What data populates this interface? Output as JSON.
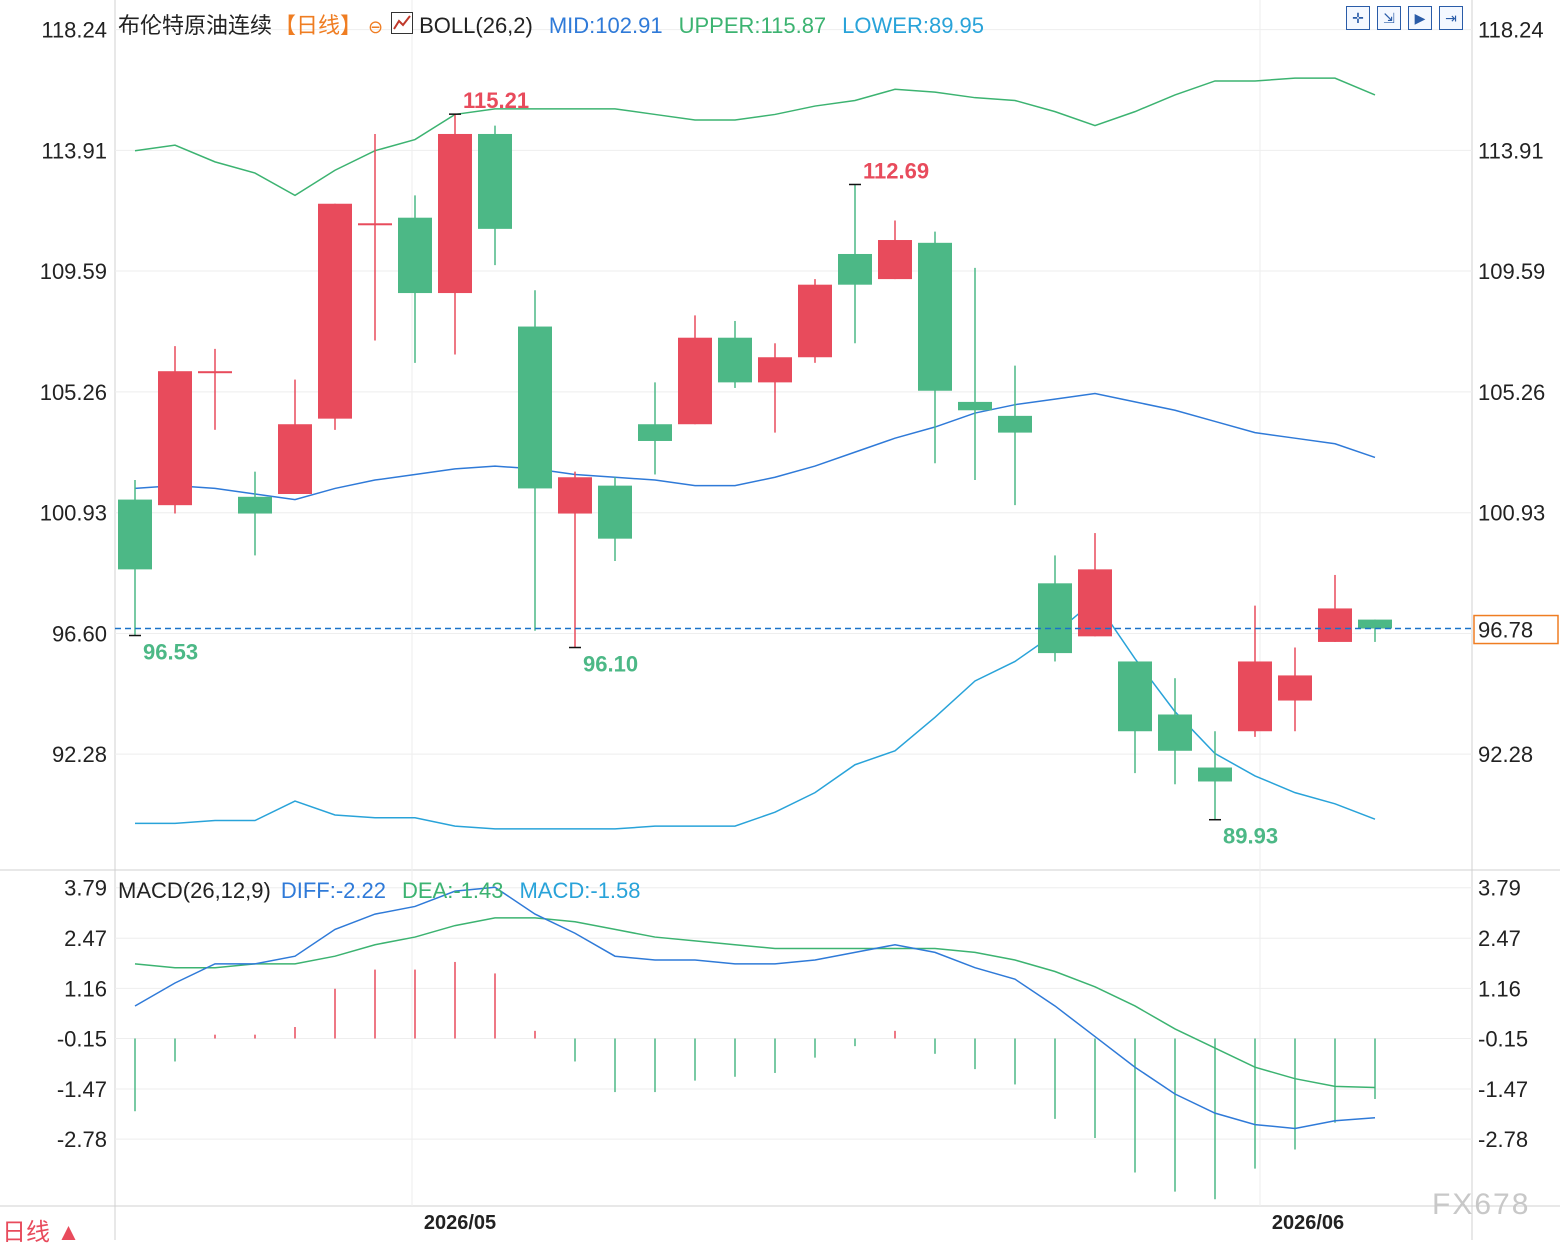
{
  "header": {
    "instrument": "布伦特原油连续",
    "period_tag": "【日线】",
    "period_icon": "⊖",
    "indicator_icon": "chart-icon",
    "boll_label": "BOLL(26,2)",
    "boll_mid": "MID:102.91",
    "boll_upper": "UPPER:115.87",
    "boll_lower": "LOWER:89.95"
  },
  "macd_header": {
    "label": "MACD(26,12,9)",
    "diff": "DIFF:-2.22",
    "dea": "DEA:-1.43",
    "macd": "MACD:-1.58"
  },
  "toolbar": {
    "icons": [
      "crosshair-icon",
      "zoom-in-icon",
      "scroll-right-icon",
      "scroll-end-icon"
    ]
  },
  "footer": {
    "period": "日线 ▲",
    "watermark": "FX678"
  },
  "colors": {
    "up": "#e84b5c",
    "down": "#4cb886",
    "mid": "#2f7ad8",
    "upper": "#3cb371",
    "lower": "#29a3d9",
    "current": "#1a73c9",
    "price_box": "#ef7d22"
  },
  "chart_data": [
    {
      "type": "candlestick",
      "title": "布伦特原油连续",
      "ylim": [
        88.2,
        119.3
      ],
      "y_ticks": [
        "118.24",
        "113.91",
        "109.59",
        "105.26",
        "100.93",
        "96.60",
        "92.28"
      ],
      "x_labels": [
        {
          "label": "2026/05",
          "index": 7
        },
        {
          "label": "2026/06",
          "index": 28
        }
      ],
      "current_price": 96.78,
      "current_price_label": "96.78",
      "candles": [
        {
          "o": 101.4,
          "h": 102.1,
          "l": 96.53,
          "c": 98.9
        },
        {
          "o": 101.2,
          "h": 106.9,
          "l": 100.9,
          "c": 106.0
        },
        {
          "o": 106.0,
          "h": 106.8,
          "l": 103.9,
          "c": 106.0
        },
        {
          "o": 101.5,
          "h": 102.4,
          "l": 99.4,
          "c": 100.9
        },
        {
          "o": 101.6,
          "h": 105.7,
          "l": 101.6,
          "c": 104.1
        },
        {
          "o": 104.3,
          "h": 112.0,
          "l": 103.9,
          "c": 112.0
        },
        {
          "o": 111.3,
          "h": 114.5,
          "l": 107.1,
          "c": 111.3
        },
        {
          "o": 111.5,
          "h": 112.3,
          "l": 106.3,
          "c": 108.8
        },
        {
          "o": 108.8,
          "h": 115.21,
          "l": 106.6,
          "c": 114.5
        },
        {
          "o": 114.5,
          "h": 114.8,
          "l": 109.8,
          "c": 111.1
        },
        {
          "o": 107.6,
          "h": 108.9,
          "l": 96.7,
          "c": 101.8
        },
        {
          "o": 100.9,
          "h": 102.4,
          "l": 96.1,
          "c": 102.2
        },
        {
          "o": 101.9,
          "h": 102.2,
          "l": 99.2,
          "c": 100.0
        },
        {
          "o": 104.1,
          "h": 105.6,
          "l": 102.3,
          "c": 103.5
        },
        {
          "o": 104.1,
          "h": 108.0,
          "l": 104.1,
          "c": 107.2
        },
        {
          "o": 107.2,
          "h": 107.8,
          "l": 105.4,
          "c": 105.6
        },
        {
          "o": 105.6,
          "h": 107.0,
          "l": 103.8,
          "c": 106.5
        },
        {
          "o": 106.5,
          "h": 109.3,
          "l": 106.3,
          "c": 109.1
        },
        {
          "o": 110.2,
          "h": 112.69,
          "l": 107.0,
          "c": 109.1
        },
        {
          "o": 109.3,
          "h": 111.4,
          "l": 109.3,
          "c": 110.7
        },
        {
          "o": 110.6,
          "h": 111.0,
          "l": 102.7,
          "c": 105.3
        },
        {
          "o": 104.9,
          "h": 109.7,
          "l": 102.1,
          "c": 104.6
        },
        {
          "o": 104.4,
          "h": 106.2,
          "l": 101.2,
          "c": 103.8
        },
        {
          "o": 98.4,
          "h": 99.4,
          "l": 95.6,
          "c": 95.9
        },
        {
          "o": 96.5,
          "h": 100.2,
          "l": 96.5,
          "c": 98.9
        },
        {
          "o": 95.6,
          "h": 95.6,
          "l": 91.6,
          "c": 93.1
        },
        {
          "o": 93.7,
          "h": 95.0,
          "l": 91.2,
          "c": 92.4
        },
        {
          "o": 91.8,
          "h": 93.1,
          "l": 89.93,
          "c": 91.3
        },
        {
          "o": 93.1,
          "h": 97.6,
          "l": 92.9,
          "c": 95.6
        },
        {
          "o": 94.2,
          "h": 96.1,
          "l": 93.1,
          "c": 95.1
        },
        {
          "o": 96.3,
          "h": 98.7,
          "l": 96.3,
          "c": 97.5
        },
        {
          "o": 97.1,
          "h": 97.1,
          "l": 96.3,
          "c": 96.78
        }
      ],
      "boll_upper": [
        113.9,
        114.1,
        113.5,
        113.1,
        112.3,
        113.2,
        113.9,
        114.3,
        115.2,
        115.4,
        115.4,
        115.4,
        115.4,
        115.2,
        115.0,
        115.0,
        115.2,
        115.5,
        115.7,
        116.1,
        116.0,
        115.8,
        115.7,
        115.3,
        114.8,
        115.3,
        115.9,
        116.4,
        116.4,
        116.5,
        116.5,
        115.9
      ],
      "boll_mid": [
        101.8,
        101.9,
        101.8,
        101.6,
        101.4,
        101.8,
        102.1,
        102.3,
        102.5,
        102.6,
        102.5,
        102.3,
        102.2,
        102.1,
        101.9,
        101.9,
        102.2,
        102.6,
        103.1,
        103.6,
        104.0,
        104.5,
        104.8,
        105.0,
        105.2,
        104.9,
        104.6,
        104.2,
        103.8,
        103.6,
        103.4,
        102.91
      ],
      "boll_lower": [
        89.8,
        89.8,
        89.9,
        89.9,
        90.6,
        90.1,
        90.0,
        90.0,
        89.7,
        89.6,
        89.6,
        89.6,
        89.6,
        89.7,
        89.7,
        89.7,
        90.2,
        90.9,
        91.9,
        92.4,
        93.6,
        94.9,
        95.6,
        96.6,
        97.8,
        95.7,
        93.8,
        92.3,
        91.5,
        90.9,
        90.5,
        89.95
      ],
      "annotations": [
        {
          "label": "115.21",
          "index": 8,
          "kind": "high"
        },
        {
          "label": "112.69",
          "index": 18,
          "kind": "high"
        },
        {
          "label": "96.53",
          "index": 0,
          "kind": "low"
        },
        {
          "label": "96.10",
          "index": 11,
          "kind": "low"
        },
        {
          "label": "89.93",
          "index": 27,
          "kind": "low"
        }
      ]
    },
    {
      "type": "bar+line",
      "title": "MACD(26,12,9)",
      "ylim": [
        -4.5,
        4.2
      ],
      "y_ticks": [
        "3.79",
        "2.47",
        "1.16",
        "-0.15",
        "-1.47",
        "-2.78"
      ],
      "diff": [
        0.7,
        1.3,
        1.8,
        1.8,
        2.0,
        2.7,
        3.1,
        3.3,
        3.7,
        3.8,
        3.1,
        2.6,
        2.0,
        1.9,
        1.9,
        1.8,
        1.8,
        1.9,
        2.1,
        2.3,
        2.1,
        1.7,
        1.4,
        0.7,
        -0.1,
        -0.9,
        -1.6,
        -2.1,
        -2.4,
        -2.5,
        -2.3,
        -2.22
      ],
      "dea": [
        1.8,
        1.7,
        1.7,
        1.8,
        1.8,
        2.0,
        2.3,
        2.5,
        2.8,
        3.0,
        3.0,
        2.9,
        2.7,
        2.5,
        2.4,
        2.3,
        2.2,
        2.2,
        2.2,
        2.2,
        2.2,
        2.1,
        1.9,
        1.6,
        1.2,
        0.7,
        0.1,
        -0.4,
        -0.9,
        -1.2,
        -1.4,
        -1.43
      ],
      "macd": [
        -1.9,
        -0.6,
        0.1,
        0.1,
        0.3,
        1.3,
        1.8,
        1.8,
        2.0,
        1.7,
        0.2,
        -0.6,
        -1.4,
        -1.4,
        -1.1,
        -1.0,
        -0.9,
        -0.5,
        -0.2,
        0.2,
        -0.4,
        -0.8,
        -1.2,
        -2.1,
        -2.6,
        -3.5,
        -4.0,
        -4.2,
        -3.4,
        -2.9,
        -2.2,
        -1.58
      ]
    }
  ]
}
